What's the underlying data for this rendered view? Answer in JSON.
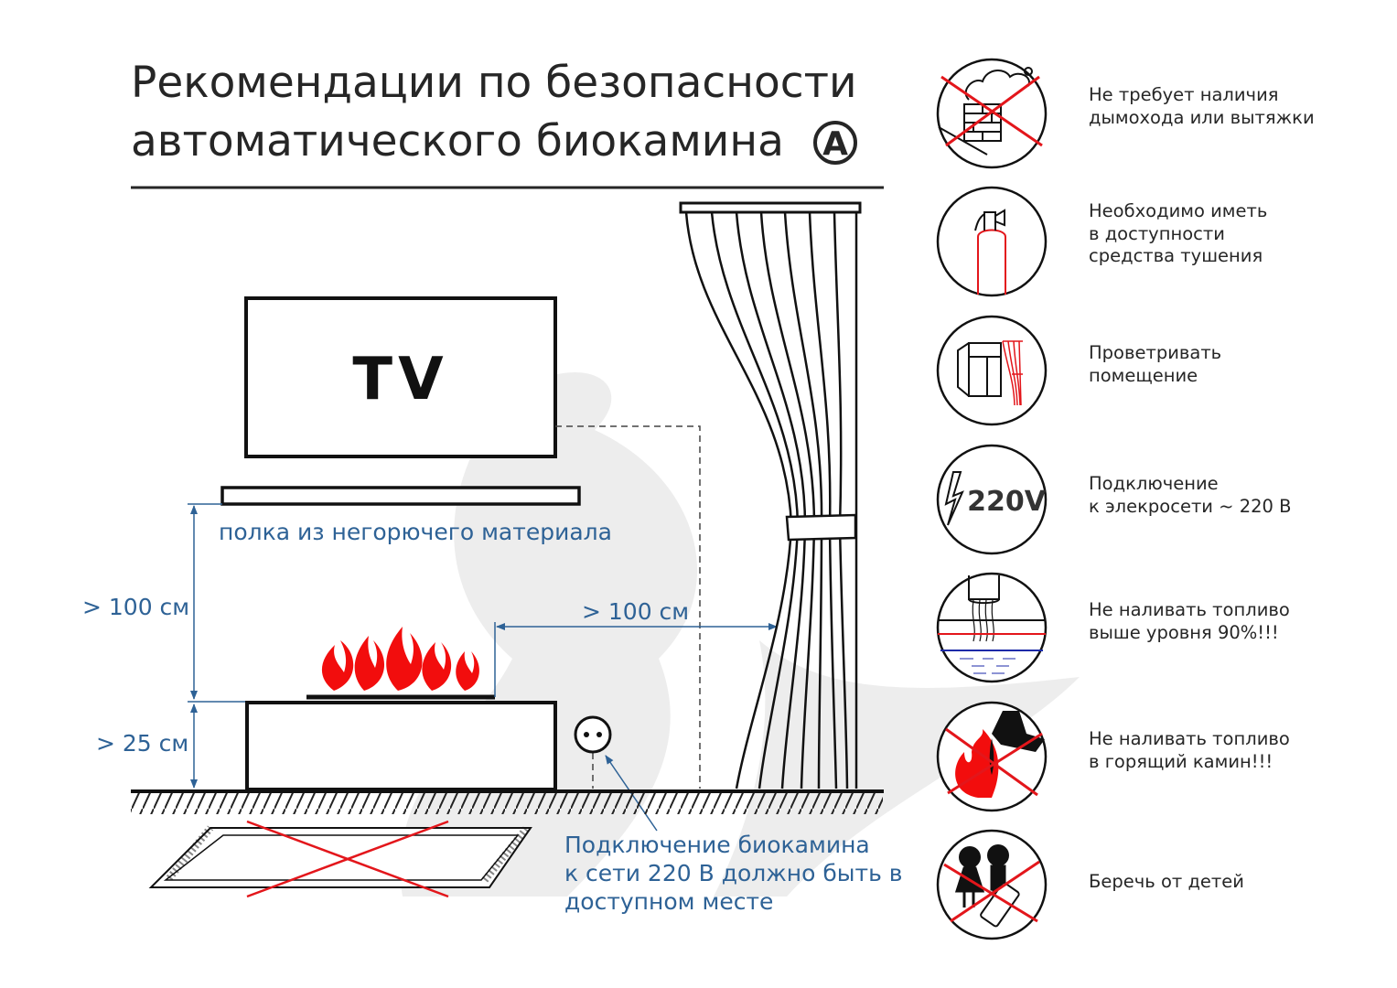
{
  "title": {
    "line1": "Рекомендации по безопасности",
    "line2": "автоматического биокамина",
    "badge": "A"
  },
  "diagram": {
    "tv_label": "TV",
    "shelf_label": "полка из негорючего материала",
    "height_above_fireplace": "> 100 см",
    "height_fireplace": "> 25 см",
    "distance_to_curtain": "> 100 см",
    "socket_note": [
      "Подключение биокамина",
      "к сети 220 В должно быть в",
      "доступном месте"
    ]
  },
  "recommendations": [
    {
      "icon": "no-chimney-icon",
      "lines": [
        "Не требует наличия",
        "дымохода или вытяжки"
      ]
    },
    {
      "icon": "fire-extinguisher-icon",
      "lines": [
        "Необходимо иметь",
        "в доступности",
        "средства тушения"
      ]
    },
    {
      "icon": "window-ventilation-icon",
      "lines": [
        "Проветривать",
        "помещение"
      ]
    },
    {
      "icon": "power-220v-icon",
      "icon_text": "220V",
      "lines": [
        "Подключение",
        "к элекросети ~ 220 В"
      ]
    },
    {
      "icon": "fuel-level-icon",
      "lines": [
        "Не наливать топливо",
        "выше уровня 90%!!!"
      ]
    },
    {
      "icon": "no-fuel-while-burning-icon",
      "lines": [
        "Не наливать топливо",
        "в горящий камин!!!"
      ]
    },
    {
      "icon": "keep-from-children-icon",
      "lines": [
        "Беречь от детей"
      ]
    }
  ],
  "colors": {
    "text": "#262626",
    "accent_blue": "#2e6296",
    "danger_red": "#e3161b",
    "watermark": "#e6e6e6"
  }
}
